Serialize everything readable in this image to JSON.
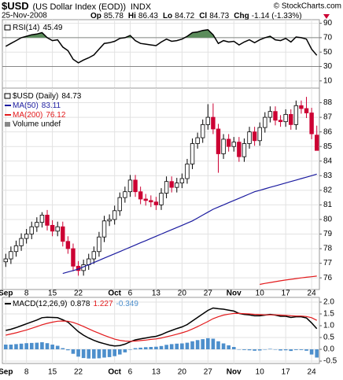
{
  "header": {
    "symbol": "$USD",
    "description": "(US Dollar Index (EOD))",
    "exchange": "INDX",
    "date": "25-Nov-2008",
    "watermark": "© StockCharts.com",
    "quote": [
      {
        "label": "Op",
        "value": 85.78
      },
      {
        "label": "Hi",
        "value": 86.43
      },
      {
        "label": "Lo",
        "value": 84.72
      },
      {
        "label": "Cl",
        "value": 84.73
      },
      {
        "label": "Chg",
        "value": -1.14,
        "value_label": "-1.14 (-1.33%)"
      }
    ]
  },
  "chart_data": [
    {
      "type": "line",
      "name": "RSI(14)",
      "ylim": [
        0,
        95
      ],
      "yticks": [
        90,
        70,
        50,
        30,
        10
      ],
      "reference_lines": [
        70,
        30
      ],
      "overbought_color": "#5b8c5b",
      "series": [
        {
          "color": "#000000",
          "values": [
            58,
            62,
            66,
            70,
            72,
            74,
            75,
            77,
            70,
            66,
            67,
            57,
            52,
            40,
            35,
            39,
            42,
            46,
            54,
            62,
            63,
            65,
            69,
            70,
            73,
            66,
            62,
            61,
            60,
            59,
            64,
            68,
            65,
            66,
            68,
            72,
            77,
            78,
            80,
            81,
            74,
            62,
            66,
            64,
            65,
            60,
            64,
            67,
            63,
            67,
            70,
            72,
            67,
            66,
            69,
            64,
            71,
            70,
            68,
            54,
            45.49
          ]
        }
      ]
    },
    {
      "type": "candlestick",
      "name": "$USD (Daily)",
      "up_color": "#000000",
      "down_color": "#cc0033",
      "ylim": [
        75.2,
        89
      ],
      "yticks": [
        76,
        77,
        78,
        79,
        80,
        81,
        82,
        83,
        84,
        85,
        86,
        87,
        88
      ],
      "volume_label": "Volume undef",
      "categories": [
        "Sep",
        null,
        null,
        null,
        "8",
        null,
        null,
        null,
        null,
        "15",
        null,
        null,
        null,
        null,
        "22",
        null,
        null,
        null,
        null,
        null,
        null,
        "Oct",
        null,
        null,
        "6",
        null,
        null,
        null,
        null,
        "13",
        null,
        null,
        null,
        null,
        "20",
        null,
        null,
        null,
        null,
        "27",
        null,
        null,
        null,
        null,
        "Nov",
        null,
        null,
        null,
        null,
        "10",
        null,
        null,
        null,
        null,
        "17",
        null,
        null,
        null,
        null,
        "24",
        null
      ],
      "open": [
        77.1,
        77.3,
        77.8,
        78.2,
        78.7,
        79.0,
        79.5,
        79.8,
        80.3,
        79.6,
        79.2,
        79.5,
        78.5,
        78.0,
        76.8,
        76.5,
        76.9,
        77.3,
        77.8,
        78.8,
        79.9,
        80.0,
        80.6,
        81.5,
        81.9,
        82.7,
        81.9,
        81.4,
        81.3,
        81.2,
        81.0,
        81.8,
        82.6,
        82.2,
        82.5,
        82.8,
        83.8,
        85.2,
        85.6,
        86.5,
        87.0,
        86.2,
        84.5,
        85.5,
        85.0,
        85.3,
        84.3,
        85.2,
        86.0,
        85.4,
        86.3,
        87.0,
        87.4,
        86.8,
        86.7,
        87.2,
        86.5,
        87.8,
        87.6,
        87.3,
        85.78
      ],
      "high": [
        77.65,
        78.15,
        78.55,
        79.05,
        79.35,
        79.85,
        80.15,
        80.5,
        80.65,
        79.95,
        79.85,
        79.85,
        78.85,
        78.35,
        77.15,
        77.25,
        77.65,
        78.15,
        79.15,
        80.25,
        80.35,
        80.95,
        81.85,
        82.25,
        83.05,
        83.05,
        82.25,
        81.75,
        81.65,
        81.55,
        82.15,
        82.95,
        82.95,
        82.85,
        83.15,
        84.15,
        85.55,
        85.95,
        86.85,
        87.9,
        87.95,
        86.55,
        85.85,
        85.85,
        85.65,
        85.65,
        85.55,
        86.35,
        86.35,
        86.65,
        87.35,
        87.75,
        87.75,
        87.15,
        87.55,
        87.55,
        88.15,
        88.15,
        88.4,
        87.65,
        86.43
      ],
      "low": [
        76.75,
        76.95,
        77.45,
        77.85,
        78.35,
        78.65,
        79.15,
        79.45,
        79.25,
        78.85,
        78.85,
        78.15,
        77.65,
        76.45,
        76.15,
        76.15,
        76.55,
        76.95,
        77.45,
        78.45,
        79.55,
        79.65,
        80.25,
        81.15,
        81.55,
        81.55,
        81.05,
        80.95,
        80.85,
        80.65,
        80.65,
        81.45,
        81.85,
        81.85,
        82.15,
        82.45,
        83.45,
        84.85,
        85.25,
        86.15,
        85.85,
        83.2,
        84.15,
        84.65,
        84.65,
        83.95,
        83.95,
        84.85,
        85.05,
        85.05,
        85.95,
        86.65,
        86.45,
        86.35,
        86.35,
        86.15,
        86.15,
        87.25,
        86.95,
        85.5,
        84.72
      ],
      "close": [
        77.3,
        77.8,
        78.2,
        78.7,
        79.0,
        79.5,
        79.8,
        80.3,
        79.6,
        79.2,
        79.5,
        78.5,
        78.0,
        76.8,
        76.5,
        76.9,
        77.3,
        77.8,
        78.8,
        79.9,
        80.0,
        80.6,
        81.5,
        81.9,
        82.7,
        81.9,
        81.4,
        81.3,
        81.2,
        81.0,
        81.8,
        82.6,
        82.2,
        82.5,
        82.8,
        83.8,
        85.2,
        85.6,
        86.5,
        87.0,
        86.2,
        84.5,
        85.5,
        85.0,
        85.3,
        84.3,
        85.2,
        86.0,
        85.4,
        86.3,
        87.0,
        87.4,
        86.8,
        86.7,
        87.2,
        86.5,
        87.8,
        87.6,
        87.3,
        85.87,
        84.73
      ],
      "series": [
        {
          "name": "MA(50)",
          "color": "#1c1ca0",
          "values": [
            null,
            null,
            null,
            null,
            null,
            null,
            null,
            null,
            null,
            null,
            null,
            76.3,
            76.4,
            76.5,
            76.6,
            76.75,
            76.9,
            77.05,
            77.2,
            77.35,
            77.5,
            77.65,
            77.8,
            77.95,
            78.1,
            78.25,
            78.4,
            78.55,
            78.7,
            78.85,
            79.0,
            79.15,
            79.3,
            79.45,
            79.6,
            79.75,
            79.9,
            80.1,
            80.3,
            80.5,
            80.7,
            80.85,
            81.0,
            81.15,
            81.3,
            81.45,
            81.6,
            81.75,
            81.9,
            82.0,
            82.1,
            82.2,
            82.3,
            82.4,
            82.5,
            82.6,
            82.7,
            82.8,
            82.9,
            83.0,
            83.11
          ]
        },
        {
          "name": "MA(200)",
          "color": "#e31a1c",
          "values": [
            null,
            null,
            null,
            null,
            null,
            null,
            null,
            null,
            null,
            null,
            null,
            null,
            null,
            null,
            null,
            null,
            null,
            null,
            null,
            null,
            null,
            null,
            null,
            null,
            null,
            null,
            null,
            null,
            null,
            null,
            null,
            null,
            null,
            null,
            null,
            null,
            null,
            null,
            null,
            null,
            null,
            null,
            null,
            null,
            null,
            null,
            null,
            null,
            null,
            75.55,
            75.62,
            75.68,
            75.74,
            75.8,
            75.85,
            75.9,
            75.95,
            76.0,
            76.04,
            76.08,
            76.12
          ]
        }
      ]
    },
    {
      "type": "line",
      "name": "MACD(12,26,9)",
      "ylim": [
        -0.6,
        2.2
      ],
      "yticks": [
        {
          "value": 2,
          "label": "2.0"
        },
        1.5,
        {
          "value": 1,
          "label": "1.0"
        },
        0.5,
        {
          "value": 0,
          "label": "0.0"
        },
        -0.5
      ],
      "series": [
        {
          "color": "#000000",
          "values": [
            0.8,
            0.85,
            0.92,
            1.0,
            1.08,
            1.16,
            1.24,
            1.34,
            1.36,
            1.35,
            1.34,
            1.25,
            1.15,
            0.95,
            0.75,
            0.6,
            0.48,
            0.38,
            0.3,
            0.24,
            0.18,
            0.14,
            0.16,
            0.22,
            0.32,
            0.4,
            0.44,
            0.48,
            0.52,
            0.55,
            0.62,
            0.72,
            0.8,
            0.88,
            0.95,
            1.05,
            1.2,
            1.35,
            1.5,
            1.65,
            1.75,
            1.72,
            1.7,
            1.66,
            1.62,
            1.52,
            1.48,
            1.46,
            1.42,
            1.42,
            1.45,
            1.48,
            1.45,
            1.4,
            1.4,
            1.35,
            1.38,
            1.38,
            1.33,
            1.12,
            0.878
          ]
        },
        {
          "color": "#e31a1c",
          "values": [
            0.6,
            0.65,
            0.7,
            0.76,
            0.82,
            0.89,
            0.96,
            1.04,
            1.1,
            1.15,
            1.19,
            1.2,
            1.19,
            1.14,
            1.06,
            0.97,
            0.87,
            0.77,
            0.68,
            0.59,
            0.51,
            0.43,
            0.38,
            0.35,
            0.34,
            0.35,
            0.37,
            0.39,
            0.42,
            0.44,
            0.48,
            0.53,
            0.58,
            0.64,
            0.7,
            0.77,
            0.86,
            0.96,
            1.07,
            1.18,
            1.3,
            1.38,
            1.45,
            1.49,
            1.52,
            1.52,
            1.51,
            1.5,
            1.48,
            1.47,
            1.46,
            1.46,
            1.46,
            1.45,
            1.44,
            1.42,
            1.41,
            1.41,
            1.39,
            1.34,
            1.227
          ]
        },
        {
          "type": "bar",
          "color": "#4d8fcc",
          "values": [
            0.2,
            0.2,
            0.22,
            0.24,
            0.26,
            0.27,
            0.28,
            0.3,
            0.26,
            0.2,
            0.15,
            0.05,
            -0.04,
            -0.19,
            -0.31,
            -0.37,
            -0.39,
            -0.39,
            -0.38,
            -0.35,
            -0.33,
            -0.29,
            -0.22,
            -0.13,
            -0.02,
            0.05,
            0.07,
            0.09,
            0.1,
            0.11,
            0.14,
            0.19,
            0.22,
            0.24,
            0.25,
            0.28,
            0.34,
            0.39,
            0.43,
            0.47,
            0.45,
            0.34,
            0.25,
            0.17,
            0.1,
            0.0,
            -0.03,
            -0.04,
            -0.06,
            -0.05,
            -0.01,
            0.02,
            -0.01,
            -0.05,
            -0.04,
            -0.07,
            -0.03,
            -0.03,
            -0.06,
            -0.22,
            -0.349
          ]
        }
      ]
    }
  ]
}
